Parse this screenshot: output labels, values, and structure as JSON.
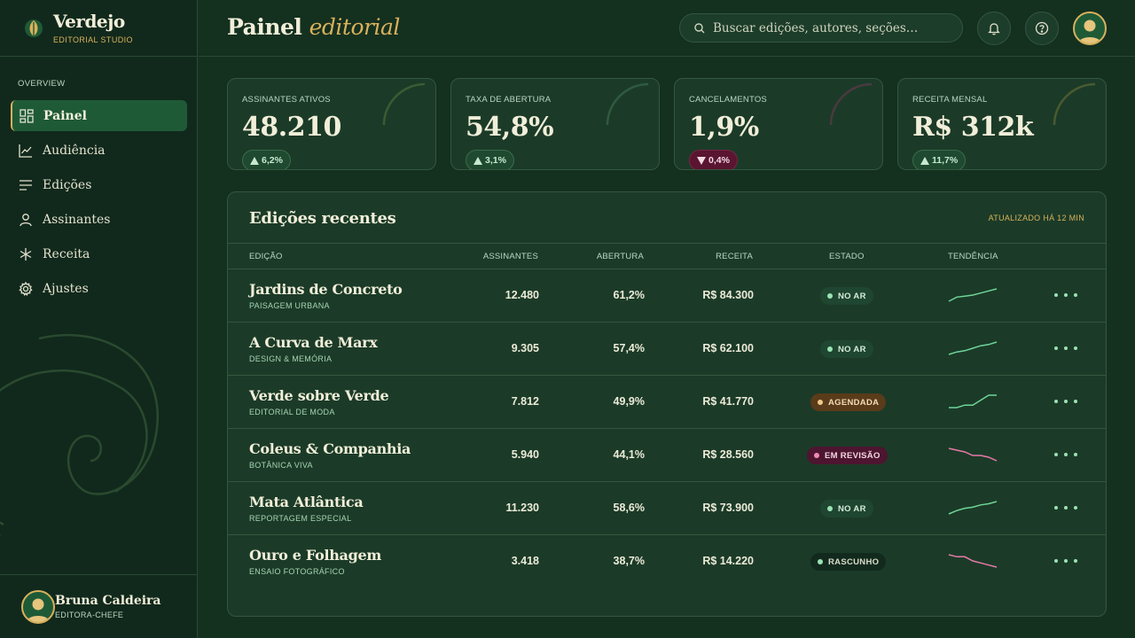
{
  "brand": {
    "name": "Verdejo",
    "subtitle": "EDITORIAL STUDIO"
  },
  "sidebar": {
    "section": "OVERVIEW",
    "items": [
      {
        "label": "Painel",
        "icon": "dashboard-icon",
        "active": true
      },
      {
        "label": "Audiência",
        "icon": "chart-line-icon",
        "active": false
      },
      {
        "label": "Edições",
        "icon": "list-icon",
        "active": false
      },
      {
        "label": "Assinantes",
        "icon": "user-icon",
        "active": false
      },
      {
        "label": "Receita",
        "icon": "asterisk-icon",
        "active": false
      },
      {
        "label": "Ajustes",
        "icon": "gear-icon",
        "active": false
      }
    ],
    "profile": {
      "name": "Bruna Caldeira",
      "role": "EDITORA-CHEFE"
    }
  },
  "header": {
    "title_main": "Painel",
    "title_accent": "editorial",
    "search_placeholder": "Buscar edições, autores, seções…"
  },
  "kpis": [
    {
      "label": "ASSINANTES ATIVOS",
      "value": "48.210",
      "delta": "6,2%",
      "direction": "up"
    },
    {
      "label": "TAXA DE ABERTURA",
      "value": "54,8%",
      "delta": "3,1%",
      "direction": "up"
    },
    {
      "label": "CANCELAMENTOS",
      "value": "1,9%",
      "delta": "0,4%",
      "direction": "down"
    },
    {
      "label": "RECEITA MENSAL",
      "value": "R$ 312k",
      "delta": "11,7%",
      "direction": "up"
    }
  ],
  "table": {
    "title": "Edições recentes",
    "updated": "ATUALIZADO HÁ 12 MIN",
    "columns": [
      "EDIÇÃO",
      "ASSINANTES",
      "ABERTURA",
      "RECEITA",
      "ESTADO",
      "TENDÊNCIA"
    ],
    "rows": [
      {
        "title": "Jardins de Concreto",
        "section": "PAISAGEM URBANA",
        "subscribers": "12.480",
        "open_rate": "61,2%",
        "revenue": "R$ 84.300",
        "status": "NO AR",
        "status_kind": "live",
        "trend": [
          2,
          6,
          7,
          8,
          10,
          12,
          14
        ],
        "trend_dir": "up"
      },
      {
        "title": "A Curva de Marx",
        "section": "DESIGN & MEMÓRIA",
        "subscribers": "9.305",
        "open_rate": "57,4%",
        "revenue": "R$ 62.100",
        "status": "NO AR",
        "status_kind": "live",
        "trend": [
          3,
          5,
          6,
          8,
          10,
          11,
          13
        ],
        "trend_dir": "up"
      },
      {
        "title": "Verde sobre Verde",
        "section": "EDITORIAL DE MODA",
        "subscribers": "7.812",
        "open_rate": "49,9%",
        "revenue": "R$ 41.770",
        "status": "AGENDADA",
        "status_kind": "sched",
        "trend": [
          5,
          5,
          6,
          6,
          8,
          10,
          10
        ],
        "trend_dir": "up"
      },
      {
        "title": "Coleus & Companhia",
        "section": "BOTÂNICA VIVA",
        "subscribers": "5.940",
        "open_rate": "44,1%",
        "revenue": "R$ 28.560",
        "status": "EM REVISÃO",
        "status_kind": "review",
        "trend": [
          13,
          12,
          11,
          9,
          9,
          8,
          6
        ],
        "trend_dir": "down"
      },
      {
        "title": "Mata Atlântica",
        "section": "REPORTAGEM ESPECIAL",
        "subscribers": "11.230",
        "open_rate": "58,6%",
        "revenue": "R$ 73.900",
        "status": "NO AR",
        "status_kind": "live",
        "trend": [
          2,
          5,
          7,
          8,
          10,
          11,
          13
        ],
        "trend_dir": "up"
      },
      {
        "title": "Ouro e Folhagem",
        "section": "ENSAIO FOTOGRÁFICO",
        "subscribers": "3.418",
        "open_rate": "38,7%",
        "revenue": "R$ 14.220",
        "status": "RASCUNHO",
        "status_kind": "draft",
        "trend": [
          12,
          11,
          11,
          9,
          8,
          7,
          6
        ],
        "trend_dir": "down"
      }
    ]
  },
  "colors": {
    "background": "#14301f",
    "accent_gold": "#d9b15c",
    "trend_up": "#6fd49a",
    "trend_down": "#e879a8"
  }
}
